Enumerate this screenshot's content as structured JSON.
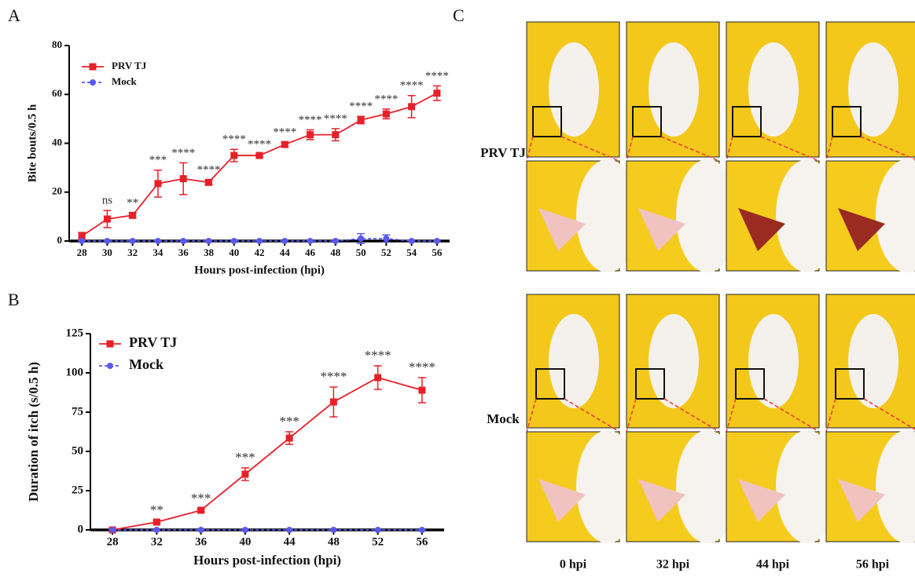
{
  "chart_data": [
    {
      "type": "line",
      "panel_label": "A",
      "x_label": "Hours post-infection (hpi)",
      "y_label": "Bite bouts/0.5 h",
      "x": [
        28,
        30,
        32,
        34,
        36,
        38,
        40,
        42,
        44,
        46,
        48,
        50,
        52,
        54,
        56
      ],
      "series": [
        {
          "name": "PRV TJ",
          "color": "#e8202a",
          "marker": "square",
          "dashed": false,
          "values": [
            2,
            9,
            10.5,
            23.5,
            25.5,
            24,
            35,
            35,
            39.5,
            43.5,
            43.5,
            49.5,
            52,
            55,
            60.5
          ],
          "errors": [
            1.5,
            3.5,
            1,
            5.5,
            6.5,
            1,
            2.5,
            0.5,
            1,
            2,
            2.5,
            1.5,
            2,
            4.5,
            3
          ]
        },
        {
          "name": "Mock",
          "color": "#5a5af0",
          "marker": "circle",
          "dashed": true,
          "values": [
            0,
            0,
            0,
            0,
            0,
            0,
            0,
            0,
            0,
            0,
            0,
            1,
            1,
            0,
            0
          ],
          "errors": [
            0,
            0,
            0,
            0,
            0,
            0,
            0,
            0,
            0,
            0,
            0,
            2,
            1.5,
            0,
            0
          ]
        }
      ],
      "annotations": [
        null,
        "ns",
        "**",
        "***",
        "****",
        "****",
        "****",
        "****",
        "****",
        "****",
        "****",
        "****",
        "****",
        "****",
        "****"
      ],
      "xlim": [
        27,
        57
      ],
      "xticks": [
        28,
        30,
        32,
        34,
        36,
        38,
        40,
        42,
        44,
        46,
        48,
        50,
        52,
        54,
        56
      ],
      "ylim": [
        0,
        80
      ],
      "yticks": [
        0,
        20,
        40,
        60,
        80
      ]
    },
    {
      "type": "line",
      "panel_label": "B",
      "x_label": "Hours post-infection (hpi)",
      "y_label": "Duration of itch (s/0.5 h)",
      "x": [
        28,
        32,
        36,
        40,
        44,
        48,
        52,
        56
      ],
      "series": [
        {
          "name": "PRV TJ",
          "color": "#e8202a",
          "marker": "square",
          "dashed": false,
          "values": [
            0,
            5,
            12.5,
            35.5,
            58.5,
            81.5,
            97,
            89
          ],
          "errors": [
            0,
            1,
            1,
            4,
            4,
            9.5,
            7.5,
            8
          ]
        },
        {
          "name": "Mock",
          "color": "#5a5af0",
          "marker": "circle",
          "dashed": true,
          "values": [
            0,
            0,
            0,
            0,
            0,
            0,
            0,
            0
          ],
          "errors": [
            0,
            0,
            0,
            0,
            0,
            0,
            0,
            0
          ]
        }
      ],
      "annotations": [
        null,
        "**",
        "***",
        "***",
        "***",
        "****",
        "****",
        "****"
      ],
      "xlim": [
        26,
        58
      ],
      "xticks": [
        28,
        32,
        36,
        40,
        44,
        48,
        52,
        56
      ],
      "ylim": [
        0,
        125
      ],
      "yticks": [
        0,
        25,
        50,
        75,
        100,
        125
      ]
    }
  ],
  "photo_panel": {
    "label": "C",
    "rows": [
      "PRV TJ",
      "Mock"
    ],
    "columns": [
      "0 hpi",
      "32 hpi",
      "44 hpi",
      "56 hpi"
    ]
  }
}
